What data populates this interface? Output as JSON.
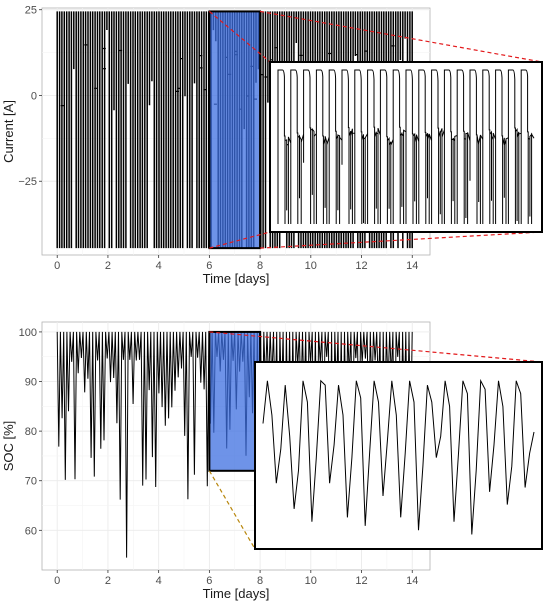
{
  "chart_data": [
    {
      "type": "line",
      "xlabel": "Time [days]",
      "ylabel": "Current [A]",
      "xlim": [
        -0.6,
        14.7
      ],
      "ylim": [
        -46.5,
        25.5
      ],
      "x_ticks": [
        0,
        2,
        4,
        6,
        8,
        10,
        12,
        14
      ],
      "y_ticks": [
        -25,
        0,
        25
      ],
      "y_tick_labels": [
        "−25",
        "0",
        "25"
      ],
      "grid": true,
      "signal": {
        "max": 24.5,
        "min": -44.5,
        "x_start": 0,
        "x_end": 14
      },
      "highlight": {
        "x0": 6,
        "x1": 8,
        "color": "#3d6fe0"
      },
      "inset_zoom": {
        "x_range": [
          6,
          8
        ],
        "connector_color": "#e31a1c"
      }
    },
    {
      "type": "line",
      "xlabel": "Time [days]",
      "ylabel": "SOC [%]",
      "xlim": [
        -0.6,
        14.7
      ],
      "ylim": [
        52,
        102
      ],
      "x_ticks": [
        0,
        2,
        4,
        6,
        8,
        10,
        12,
        14
      ],
      "y_ticks": [
        60,
        70,
        80,
        90,
        100
      ],
      "grid": true,
      "signal": {
        "max": 100,
        "min": 54.5,
        "x_start": 0,
        "x_end": 14
      },
      "highlight": {
        "x0": 6,
        "x1": 8,
        "y0": 72,
        "y1": 100,
        "color": "#3d6fe0"
      },
      "inset_zoom": {
        "x_range": [
          6,
          8
        ],
        "connector_colors": [
          "#e31a1c",
          "#b8860b"
        ],
        "profile": [
          83,
          93,
          85,
          69,
          77,
          92,
          80,
          63,
          72,
          93,
          88,
          60,
          75,
          93,
          92,
          69,
          78,
          92,
          85,
          61,
          75,
          93,
          89,
          59,
          76,
          93,
          88,
          66,
          79,
          93,
          85,
          61,
          76,
          93,
          88,
          58,
          73,
          92,
          88,
          75,
          80,
          93,
          87,
          60,
          76,
          93,
          90,
          57,
          72,
          93,
          91,
          67,
          78,
          93,
          87,
          64,
          73,
          93,
          90,
          68,
          76,
          81
        ]
      }
    }
  ]
}
